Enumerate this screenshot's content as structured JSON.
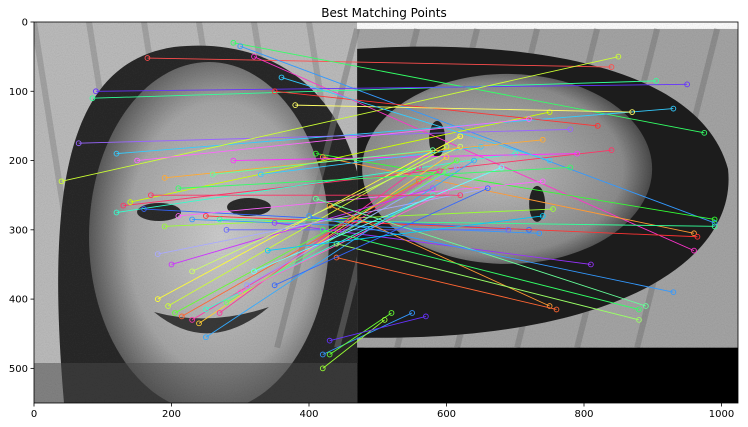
{
  "chart_data": {
    "type": "scatter",
    "title": "Best Matching Points",
    "xlabel": "",
    "ylabel": "",
    "xlim": [
      0,
      1024
    ],
    "ylim": [
      550,
      0
    ],
    "x_ticks": [
      0,
      200,
      400,
      600,
      800,
      1000
    ],
    "y_ticks": [
      0,
      100,
      200,
      300,
      400,
      500
    ],
    "grid": false,
    "images": [
      {
        "name": "left-face",
        "x_range": [
          0,
          470
        ],
        "y_range": [
          0,
          550
        ]
      },
      {
        "name": "right-face-rotated",
        "x_range": [
          470,
          1024
        ],
        "y_range": [
          10,
          470
        ]
      }
    ],
    "matches": [
      {
        "from": [
          165,
          52
        ],
        "to": [
          840,
          65
        ],
        "color": "#ff4d4d"
      },
      {
        "from": [
          290,
          30
        ],
        "to": [
          975,
          160
        ],
        "color": "#33ff66"
      },
      {
        "from": [
          300,
          35
        ],
        "to": [
          990,
          290
        ],
        "color": "#3399ff"
      },
      {
        "from": [
          320,
          50
        ],
        "to": [
          960,
          330
        ],
        "color": "#ff33cc"
      },
      {
        "from": [
          85,
          110
        ],
        "to": [
          905,
          85
        ],
        "color": "#33ff99"
      },
      {
        "from": [
          90,
          100
        ],
        "to": [
          950,
          90
        ],
        "color": "#6633ff"
      },
      {
        "from": [
          120,
          190
        ],
        "to": [
          930,
          125
        ],
        "color": "#33ccff"
      },
      {
        "from": [
          65,
          175
        ],
        "to": [
          780,
          155
        ],
        "color": "#9966ff"
      },
      {
        "from": [
          40,
          230
        ],
        "to": [
          850,
          50
        ],
        "color": "#ccff33"
      },
      {
        "from": [
          410,
          190
        ],
        "to": [
          990,
          285
        ],
        "color": "#33ff33"
      },
      {
        "from": [
          420,
          195
        ],
        "to": [
          960,
          305
        ],
        "color": "#ff9933"
      },
      {
        "from": [
          130,
          265
        ],
        "to": [
          840,
          185
        ],
        "color": "#ff3366"
      },
      {
        "from": [
          120,
          275
        ],
        "to": [
          700,
          190
        ],
        "color": "#33ffcc"
      },
      {
        "from": [
          140,
          260
        ],
        "to": [
          750,
          130
        ],
        "color": "#ccff00"
      },
      {
        "from": [
          160,
          270
        ],
        "to": [
          720,
          300
        ],
        "color": "#3366ff"
      },
      {
        "from": [
          190,
          295
        ],
        "to": [
          755,
          270
        ],
        "color": "#99ff33"
      },
      {
        "from": [
          210,
          280
        ],
        "to": [
          740,
          230
        ],
        "color": "#ff66ff"
      },
      {
        "from": [
          230,
          285
        ],
        "to": [
          735,
          305
        ],
        "color": "#3399ff"
      },
      {
        "from": [
          250,
          280
        ],
        "to": [
          965,
          310
        ],
        "color": "#ff3333"
      },
      {
        "from": [
          270,
          285
        ],
        "to": [
          990,
          295
        ],
        "color": "#33ff99"
      },
      {
        "from": [
          280,
          300
        ],
        "to": [
          690,
          300
        ],
        "color": "#6666ff"
      },
      {
        "from": [
          290,
          200
        ],
        "to": [
          790,
          190
        ],
        "color": "#ff33ff"
      },
      {
        "from": [
          330,
          220
        ],
        "to": [
          650,
          180
        ],
        "color": "#33ccff"
      },
      {
        "from": [
          350,
          290
        ],
        "to": [
          810,
          350
        ],
        "color": "#9933ff"
      },
      {
        "from": [
          180,
          400
        ],
        "to": [
          620,
          165
        ],
        "color": "#ffff33"
      },
      {
        "from": [
          195,
          410
        ],
        "to": [
          600,
          180
        ],
        "color": "#ccff33"
      },
      {
        "from": [
          205,
          420
        ],
        "to": [
          615,
          200
        ],
        "color": "#66ff33"
      },
      {
        "from": [
          215,
          425
        ],
        "to": [
          560,
          230
        ],
        "color": "#ff6633"
      },
      {
        "from": [
          230,
          430
        ],
        "to": [
          590,
          215
        ],
        "color": "#ff33aa"
      },
      {
        "from": [
          240,
          435
        ],
        "to": [
          600,
          195
        ],
        "color": "#ffcc33"
      },
      {
        "from": [
          250,
          415
        ],
        "to": [
          580,
          250
        ],
        "color": "#33ffcc"
      },
      {
        "from": [
          270,
          420
        ],
        "to": [
          560,
          210
        ],
        "color": "#ff3399"
      },
      {
        "from": [
          280,
          405
        ],
        "to": [
          600,
          215
        ],
        "color": "#66ff66"
      },
      {
        "from": [
          300,
          390
        ],
        "to": [
          600,
          245
        ],
        "color": "#ff66cc"
      },
      {
        "from": [
          310,
          380
        ],
        "to": [
          615,
          210
        ],
        "color": "#9999ff"
      },
      {
        "from": [
          200,
          350
        ],
        "to": [
          580,
          240
        ],
        "color": "#cc33ff"
      },
      {
        "from": [
          230,
          360
        ],
        "to": [
          620,
          180
        ],
        "color": "#ccff66"
      },
      {
        "from": [
          250,
          455
        ],
        "to": [
          640,
          200
        ],
        "color": "#33aaff"
      },
      {
        "from": [
          180,
          335
        ],
        "to": [
          660,
          240
        ],
        "color": "#aaaaff"
      },
      {
        "from": [
          410,
          255
        ],
        "to": [
          890,
          410
        ],
        "color": "#66ff99"
      },
      {
        "from": [
          430,
          265
        ],
        "to": [
          750,
          410
        ],
        "color": "#ff9933"
      },
      {
        "from": [
          400,
          280
        ],
        "to": [
          930,
          390
        ],
        "color": "#3399ff"
      },
      {
        "from": [
          420,
          300
        ],
        "to": [
          880,
          415
        ],
        "color": "#33ff66"
      },
      {
        "from": [
          440,
          320
        ],
        "to": [
          880,
          430
        ],
        "color": "#99ff66"
      },
      {
        "from": [
          440,
          340
        ],
        "to": [
          760,
          415
        ],
        "color": "#ff6633"
      },
      {
        "from": [
          420,
          480
        ],
        "to": [
          550,
          420
        ],
        "color": "#3399ff"
      },
      {
        "from": [
          430,
          480
        ],
        "to": [
          520,
          420
        ],
        "color": "#66ff33"
      },
      {
        "from": [
          420,
          500
        ],
        "to": [
          510,
          430
        ],
        "color": "#99ff33"
      },
      {
        "from": [
          430,
          460
        ],
        "to": [
          570,
          425
        ],
        "color": "#6633ff"
      },
      {
        "from": [
          350,
          100
        ],
        "to": [
          820,
          150
        ],
        "color": "#ff3333"
      },
      {
        "from": [
          380,
          120
        ],
        "to": [
          870,
          130
        ],
        "color": "#ffff66"
      },
      {
        "from": [
          360,
          80
        ],
        "to": [
          750,
          200
        ],
        "color": "#33ccff"
      },
      {
        "from": [
          150,
          200
        ],
        "to": [
          720,
          140
        ],
        "color": "#ff66ff"
      },
      {
        "from": [
          350,
          380
        ],
        "to": [
          660,
          240
        ],
        "color": "#3366ff"
      },
      {
        "from": [
          320,
          360
        ],
        "to": [
          680,
          210
        ],
        "color": "#66ffff"
      },
      {
        "from": [
          340,
          330
        ],
        "to": [
          740,
          280
        ],
        "color": "#00ccff"
      },
      {
        "from": [
          190,
          225
        ],
        "to": [
          740,
          170
        ],
        "color": "#ffaa33"
      },
      {
        "from": [
          210,
          240
        ],
        "to": [
          780,
          210
        ],
        "color": "#33ff66"
      },
      {
        "from": [
          170,
          250
        ],
        "to": [
          620,
          250
        ],
        "color": "#ff3366"
      },
      {
        "from": [
          260,
          220
        ],
        "to": [
          580,
          185
        ],
        "color": "#66ff99"
      }
    ]
  }
}
